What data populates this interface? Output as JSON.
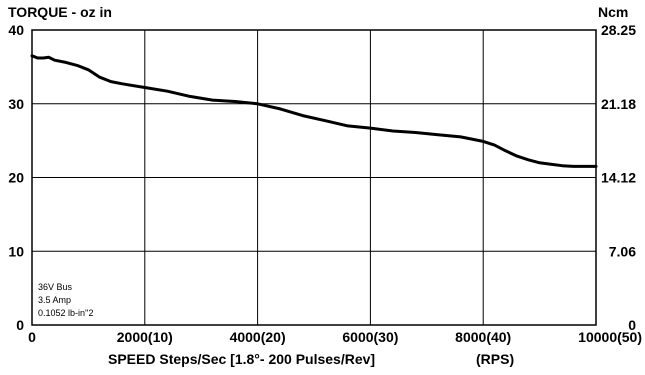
{
  "chart_data": {
    "type": "line",
    "title_left": "TORQUE - oz in",
    "title_right": "Ncm",
    "xlabel": "SPEED Steps/Sec [1.8°- 200 Pulses/Rev]",
    "xlabel_units": "(RPS)",
    "xlim": [
      0,
      10000
    ],
    "ylim": [
      0,
      40
    ],
    "grid": true,
    "x_ticks": [
      {
        "value": 0,
        "label": "0"
      },
      {
        "value": 2000,
        "label": "2000(10)"
      },
      {
        "value": 4000,
        "label": "4000(20)"
      },
      {
        "value": 6000,
        "label": "6000(30)"
      },
      {
        "value": 8000,
        "label": "8000(40)"
      },
      {
        "value": 10000,
        "label": "10000(50)"
      }
    ],
    "y_ticks_left": [
      {
        "value": 0,
        "label": "0"
      },
      {
        "value": 10,
        "label": "10"
      },
      {
        "value": 20,
        "label": "20"
      },
      {
        "value": 30,
        "label": "30"
      },
      {
        "value": 40,
        "label": "40"
      }
    ],
    "y_ticks_right": [
      {
        "value": 0,
        "label": "0"
      },
      {
        "value": 10,
        "label": "7.06"
      },
      {
        "value": 20,
        "label": "14.12"
      },
      {
        "value": 30,
        "label": "21.18"
      },
      {
        "value": 40,
        "label": "28.25"
      }
    ],
    "annotations": [
      "36V Bus",
      "3.5 Amp",
      "0.1052 lb-in''2"
    ],
    "series": [
      {
        "x": [
          0,
          100,
          200,
          300,
          400,
          600,
          800,
          1000,
          1200,
          1400,
          1600,
          2000,
          2400,
          2800,
          3200,
          3600,
          4000,
          4400,
          4800,
          5200,
          5600,
          6000,
          6400,
          6800,
          7200,
          7600,
          8000,
          8200,
          8400,
          8600,
          8800,
          9000,
          9200,
          9400,
          9600,
          9800,
          10000
        ],
        "y": [
          36.5,
          36.2,
          36.2,
          36.3,
          35.9,
          35.6,
          35.2,
          34.6,
          33.6,
          33.0,
          32.7,
          32.2,
          31.7,
          31.0,
          30.5,
          30.3,
          30.0,
          29.3,
          28.4,
          27.7,
          27.0,
          26.7,
          26.3,
          26.1,
          25.8,
          25.5,
          24.9,
          24.4,
          23.6,
          22.9,
          22.4,
          22.0,
          21.8,
          21.6,
          21.5,
          21.5,
          21.5
        ]
      }
    ]
  }
}
